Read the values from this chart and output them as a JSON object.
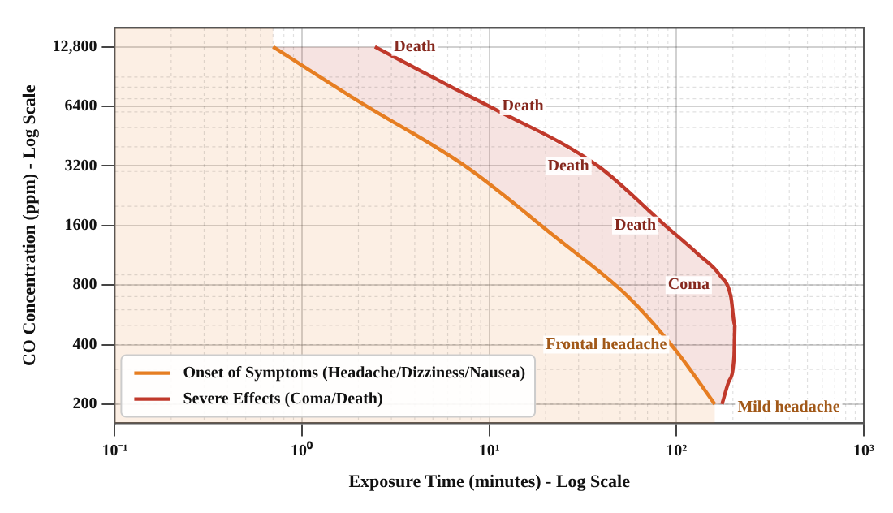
{
  "chart_data": {
    "type": "line",
    "xlabel": "Exposure Time (minutes) - Log Scale",
    "ylabel": "CO Concentration (ppm) - Log Scale",
    "series": [
      {
        "name": "Onset of Symptoms (Headache/Dizziness/Nausea)",
        "type": "area",
        "color": "#e67e22",
        "x": [
          0.7,
          2,
          7.6,
          22,
          55,
          100,
          160
        ],
        "values": [
          12800,
          6800,
          3150,
          1425,
          700,
          370,
          200
        ]
      },
      {
        "name": "Severe Effects (Coma/Death)",
        "color": "#c0392b",
        "x": [
          2.45,
          6.3,
          10,
          38,
          87,
          130,
          170,
          195,
          205,
          203,
          190,
          175
        ],
        "values": [
          12800,
          8000,
          6400,
          3200,
          1600,
          1150,
          900,
          700,
          500,
          350,
          260,
          200
        ]
      }
    ],
    "xlim": [
      0.1,
      1000
    ],
    "xticks": [
      {
        "value": 0.1,
        "label": "10⁻¹"
      },
      {
        "value": 1,
        "label": "10⁰"
      },
      {
        "value": 10,
        "label": "10¹"
      },
      {
        "value": 100,
        "label": "10²"
      },
      {
        "value": 1000,
        "label": "10³"
      }
    ],
    "ylim": [
      160,
      16000
    ],
    "yticks": [
      200,
      400,
      800,
      1600,
      3200,
      6400,
      {
        "value": 12800,
        "label": "12,800"
      }
    ],
    "bands": [
      {
        "axis": "x",
        "from": 0.1,
        "to": 0.7,
        "color": "#e67e22"
      }
    ],
    "log": "xy",
    "grid": true,
    "legend": "bottom left",
    "line_style": "solid",
    "marker": "none",
    "annotations": [
      {
        "text": "Death",
        "x": 2.75,
        "y": 12800
      },
      {
        "text": "Death",
        "x": 10.4,
        "y": 6400
      },
      {
        "text": "Death",
        "x": 38.5,
        "y": 3200
      },
      {
        "text": "Death",
        "x": 87.6,
        "y": 1600
      },
      {
        "text": "Coma",
        "x": 169,
        "y": 800
      },
      {
        "text": "Frontal headache",
        "x": 100,
        "y": 400
      },
      {
        "text": "Mild headache",
        "x": 160,
        "y": 200
      }
    ]
  }
}
